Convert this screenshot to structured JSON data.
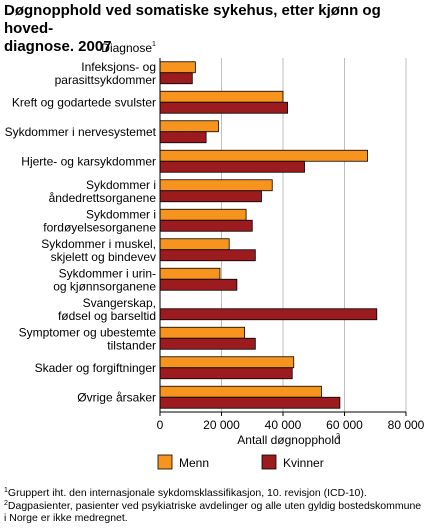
{
  "title": "Døgnopphold ved somatiske sykehus, etter kjønn og hoveddiagnose. 2007",
  "title_lines": [
    "Døgnopphold ved somatiske sykehus, etter kjønn og hoved-",
    "diagnose. 2007"
  ],
  "footnotes": [
    {
      "mark": "1",
      "text": "Gruppert iht. den internasjonale sykdomsklassifikasjon, 10. revisjon (ICD-10)."
    },
    {
      "mark": "2",
      "text": "Dagpasienter, pasienter ved psykiatriske avdelinger og alle uten gyldig bostedskommune i Norge er ikke medregnet."
    }
  ],
  "colors": {
    "menn": "#F7941D",
    "kvinner": "#9B1B1E",
    "grid": "#BFBFBF"
  },
  "chart_data": {
    "type": "bar",
    "orientation": "horizontal",
    "ylabel": "Diagnose",
    "ylabel_mark": "1",
    "xlabel": "Antall døgnopphold",
    "xlabel_mark": "2",
    "xlim": [
      0,
      80000
    ],
    "xticks": [
      0,
      20000,
      40000,
      60000,
      80000
    ],
    "xtick_labels": [
      "0",
      "20 000",
      "40 000",
      "60 000",
      "80 000"
    ],
    "grid": true,
    "legend_position": "bottom",
    "categories": [
      [
        "Infeksjons- og",
        "parasittsykdommer"
      ],
      [
        "Kreft og godartede svulster"
      ],
      [
        "Sykdommer i nervesystemet"
      ],
      [
        "Hjerte- og karsykdommer"
      ],
      [
        "Sykdommer i",
        "åndedrettsorganene"
      ],
      [
        "Sykdommer i",
        "fordøyelsesorganene"
      ],
      [
        "Sykdommer i muskel,",
        "skjelett og bindevev"
      ],
      [
        "Sykdommer i urin-",
        "og kjønnsorganene"
      ],
      [
        "Svangerskap,",
        "fødsel og barseltid"
      ],
      [
        "Symptomer og ubestemte",
        "tilstander"
      ],
      [
        "Skader og forgiftninger"
      ],
      [
        "Øvrige årsaker"
      ]
    ],
    "series": [
      {
        "name": "Menn",
        "values": [
          11500,
          40000,
          19000,
          67500,
          36500,
          28000,
          22500,
          19500,
          0,
          27500,
          43500,
          52500
        ]
      },
      {
        "name": "Kvinner",
        "values": [
          10500,
          41500,
          15000,
          47000,
          33000,
          30000,
          31000,
          25000,
          70500,
          31000,
          43000,
          58500
        ]
      }
    ]
  }
}
